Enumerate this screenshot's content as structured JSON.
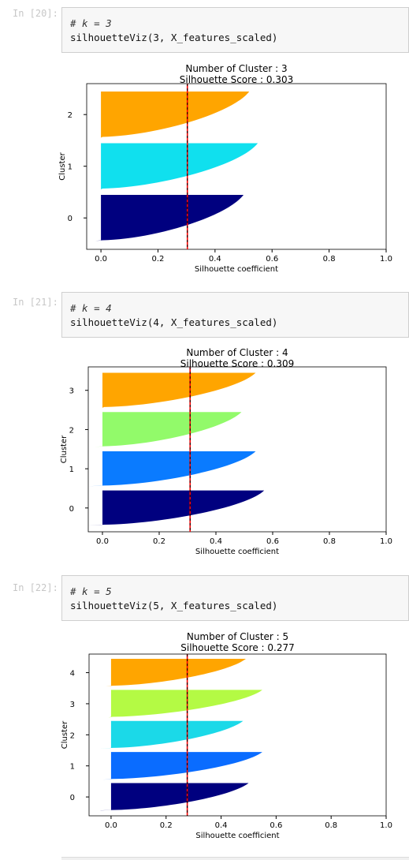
{
  "cells": [
    {
      "prompt": "In [20]:",
      "comment": "# k = 3",
      "code": "silhouetteViz(3, X_features_scaled)",
      "chart_data": {
        "type": "bar",
        "title": "Number of Cluster : 3",
        "subtitle": "Silhouette Score : 0.303",
        "xlabel": "Silhouette coefficient",
        "ylabel": "Cluster",
        "xlim": [
          -0.05,
          1.0
        ],
        "xticks": [
          "0.0",
          "0.2",
          "0.4",
          "0.6",
          "0.8",
          "1.0"
        ],
        "yticks": [
          "0",
          "1",
          "2"
        ],
        "score": 0.303,
        "clusters": [
          {
            "label": "0",
            "color": "#00007f",
            "start": 0.0,
            "end": 0.5,
            "neg": -0.02
          },
          {
            "label": "1",
            "color": "#10e0ee",
            "start": 0.0,
            "end": 0.55,
            "neg": 0.0
          },
          {
            "label": "2",
            "color": "#ffa500",
            "start": 0.0,
            "end": 0.52,
            "neg": 0.0
          }
        ]
      }
    },
    {
      "prompt": "In [21]:",
      "comment": "# k = 4",
      "code": "silhouetteViz(4, X_features_scaled)",
      "chart_data": {
        "type": "bar",
        "title": "Number of Cluster : 4",
        "subtitle": "Silhouette Score : 0.309",
        "xlabel": "Silhouette coefficient",
        "ylabel": "Cluster",
        "xlim": [
          -0.05,
          1.0
        ],
        "xticks": [
          "0.0",
          "0.2",
          "0.4",
          "0.6",
          "0.8",
          "1.0"
        ],
        "yticks": [
          "0",
          "1",
          "2",
          "3"
        ],
        "score": 0.309,
        "clusters": [
          {
            "label": "0",
            "color": "#00007f",
            "start": 0.0,
            "end": 0.57,
            "neg": -0.05
          },
          {
            "label": "1",
            "color": "#0a7bff",
            "start": 0.0,
            "end": 0.54,
            "neg": -0.05
          },
          {
            "label": "2",
            "color": "#92fa6a",
            "start": 0.0,
            "end": 0.49,
            "neg": -0.03
          },
          {
            "label": "3",
            "color": "#ffa500",
            "start": 0.0,
            "end": 0.54,
            "neg": 0.0
          }
        ]
      }
    },
    {
      "prompt": "In [22]:",
      "comment": "# k = 5",
      "code": "silhouetteViz(5, X_features_scaled)",
      "chart_data": {
        "type": "bar",
        "title": "Number of Cluster : 5",
        "subtitle": "Silhouette Score : 0.277",
        "xlabel": "Silhouette coefficient",
        "ylabel": "Cluster",
        "xlim": [
          -0.08,
          1.0
        ],
        "xticks": [
          "0.0",
          "0.2",
          "0.4",
          "0.6",
          "0.8",
          "1.0"
        ],
        "yticks": [
          "0",
          "1",
          "2",
          "3",
          "4"
        ],
        "score": 0.277,
        "clusters": [
          {
            "label": "0",
            "color": "#00007f",
            "start": 0.0,
            "end": 0.5,
            "neg": -0.08
          },
          {
            "label": "1",
            "color": "#0a6cff",
            "start": 0.0,
            "end": 0.55,
            "neg": -0.03
          },
          {
            "label": "2",
            "color": "#1bd9e8",
            "start": 0.0,
            "end": 0.48,
            "neg": -0.04
          },
          {
            "label": "3",
            "color": "#b4fa44",
            "start": 0.0,
            "end": 0.55,
            "neg": -0.01
          },
          {
            "label": "4",
            "color": "#ffa500",
            "start": 0.0,
            "end": 0.49,
            "neg": -0.02
          }
        ]
      }
    }
  ]
}
